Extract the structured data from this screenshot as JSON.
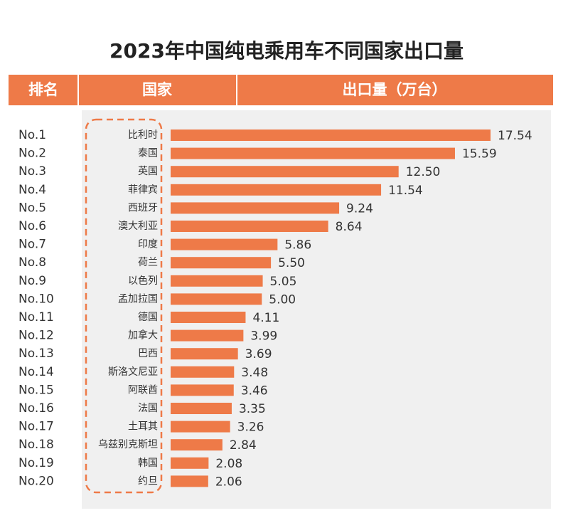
{
  "chart_data": {
    "type": "bar",
    "orientation": "horizontal",
    "title": "2023年中国纯电乘用车不同国家出口量",
    "header": [
      "排名",
      "国家",
      "出口量（万台）"
    ],
    "ranks": [
      "No.1",
      "No.2",
      "No.3",
      "No.4",
      "No.5",
      "No.6",
      "No.7",
      "No.8",
      "No.9",
      "No.10",
      "No.11",
      "No.12",
      "No.13",
      "No.14",
      "No.15",
      "No.16",
      "No.17",
      "No.18",
      "No.19",
      "No.20"
    ],
    "categories": [
      "比利时",
      "泰国",
      "英国",
      "菲律宾",
      "西班牙",
      "澳大利亚",
      "印度",
      "荷兰",
      "以色列",
      "孟加拉国",
      "德国",
      "加拿大",
      "巴西",
      "斯洛文尼亚",
      "阿联酋",
      "法国",
      "土耳其",
      "乌兹别克斯坦",
      "韩国",
      "约旦"
    ],
    "values": [
      17.54,
      15.59,
      12.5,
      11.54,
      9.24,
      8.64,
      5.86,
      5.5,
      5.05,
      5.0,
      4.11,
      3.99,
      3.69,
      3.48,
      3.46,
      3.35,
      3.26,
      2.84,
      2.08,
      2.06
    ],
    "value_labels": [
      "17.54",
      "15.59",
      "12.50",
      "11.54",
      "9.24",
      "8.64",
      "5.86",
      "5.50",
      "5.05",
      "5.00",
      "4.11",
      "3.99",
      "3.69",
      "3.48",
      "3.46",
      "3.35",
      "3.26",
      "2.84",
      "2.08",
      "2.06"
    ],
    "color": "#ee7a48"
  }
}
